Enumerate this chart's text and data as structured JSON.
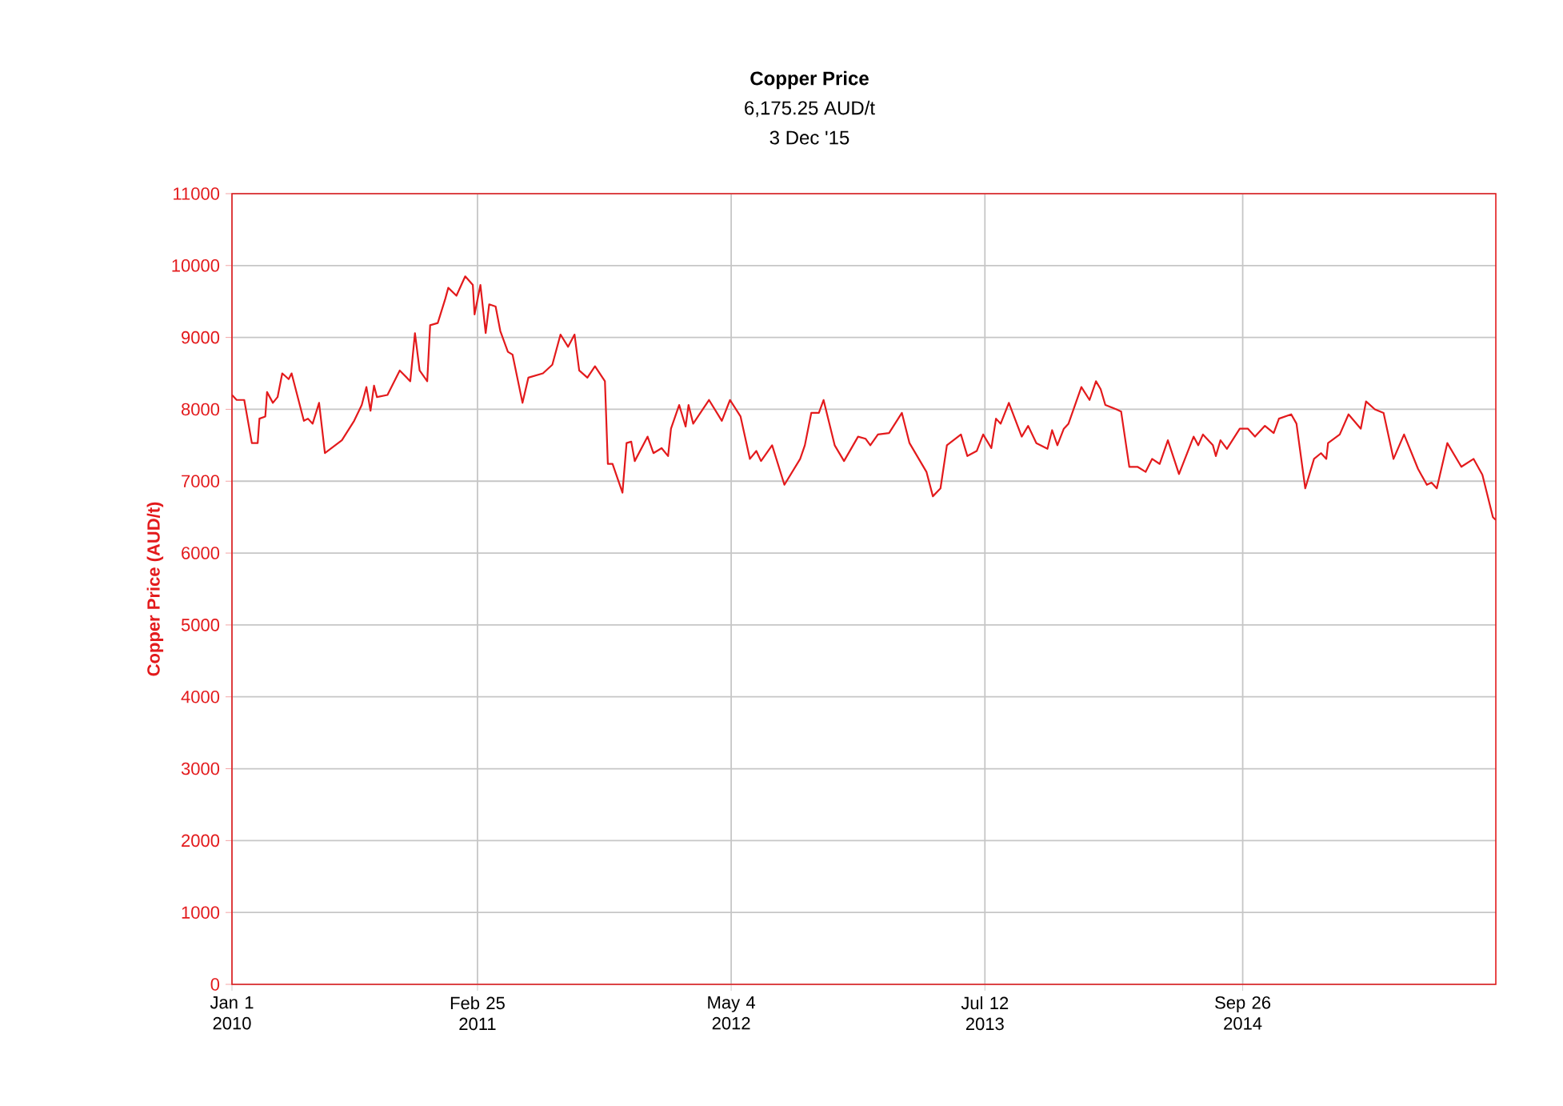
{
  "chart_data": {
    "type": "line",
    "title": "Copper Price",
    "subtitle": "6,175.25 AUD/t",
    "annotations": [
      "3 Dec '15"
    ],
    "ylabel": "Copper Price (AUD/t)",
    "xlim": [
      "2010-01-01",
      "2015-12-03"
    ],
    "xticks": [
      {
        "value": "2010-01-01",
        "label": "Jan 1 2010"
      },
      {
        "value": "2011-02-25",
        "label": "Feb 25 2011"
      },
      {
        "value": "2012-05-04",
        "label": "May 4 2012"
      },
      {
        "value": "2013-07-12",
        "label": "Jul 12 2013"
      },
      {
        "value": "2014-09-26",
        "label": "Sep 26 2014"
      }
    ],
    "ylim": [
      0,
      11000
    ],
    "yticks": [
      0,
      1000,
      2000,
      3000,
      4000,
      5000,
      6000,
      7000,
      8000,
      9000,
      10000,
      11000
    ],
    "grid": true,
    "series": [
      {
        "color": "#e31a1c",
        "x": [
          "2010-01-01",
          "2010-01-09",
          "2010-01-22",
          "2010-02-04",
          "2010-02-14",
          "2010-02-17",
          "2010-02-27",
          "2010-03-02",
          "2010-03-12",
          "2010-03-20",
          "2010-03-28",
          "2010-04-08",
          "2010-04-13",
          "2010-05-04",
          "2010-05-11",
          "2010-05-19",
          "2010-05-30",
          "2010-06-09",
          "2010-07-08",
          "2010-07-29",
          "2010-08-11",
          "2010-08-19",
          "2010-08-26",
          "2010-09-01",
          "2010-09-06",
          "2010-09-24",
          "2010-10-15",
          "2010-11-02",
          "2010-11-10",
          "2010-11-18",
          "2010-12-01",
          "2010-12-06",
          "2010-12-19",
          "2011-01-01",
          "2011-01-06",
          "2011-01-20",
          "2011-02-04",
          "2011-02-17",
          "2011-02-20",
          "2011-03-02",
          "2011-03-11",
          "2011-03-17",
          "2011-03-28",
          "2011-04-05",
          "2011-04-18",
          "2011-04-26",
          "2011-05-13",
          "2011-05-23",
          "2011-06-17",
          "2011-07-03",
          "2011-07-17",
          "2011-07-30",
          "2011-08-10",
          "2011-08-18",
          "2011-09-01",
          "2011-09-14",
          "2011-10-01",
          "2011-10-06",
          "2011-10-14",
          "2011-10-31",
          "2011-11-07",
          "2011-11-15",
          "2011-11-21",
          "2011-12-13",
          "2011-12-23",
          "2012-01-06",
          "2012-01-17",
          "2012-01-22",
          "2012-02-05",
          "2012-02-16",
          "2012-02-21",
          "2012-02-29",
          "2012-03-27",
          "2012-04-18",
          "2012-05-02",
          "2012-05-20",
          "2012-06-05",
          "2012-06-16",
          "2012-06-24",
          "2012-07-13",
          "2012-08-03",
          "2012-08-30",
          "2012-09-07",
          "2012-09-18",
          "2012-10-01",
          "2012-10-09",
          "2012-10-28",
          "2012-11-13",
          "2012-12-07",
          "2012-12-20",
          "2012-12-28",
          "2013-01-10",
          "2013-01-29",
          "2013-02-20",
          "2013-03-05",
          "2013-04-03",
          "2013-04-14",
          "2013-04-27",
          "2013-05-08",
          "2013-06-01",
          "2013-06-12",
          "2013-06-28",
          "2013-07-09",
          "2013-07-23",
          "2013-07-31",
          "2013-08-08",
          "2013-08-22",
          "2013-09-13",
          "2013-09-24",
          "2013-10-08",
          "2013-10-27",
          "2013-11-04",
          "2013-11-13",
          "2013-11-24",
          "2013-12-02",
          "2013-12-24",
          "2014-01-07",
          "2014-01-18",
          "2014-01-26",
          "2014-02-03",
          "2014-02-22",
          "2014-03-02",
          "2014-03-16",
          "2014-03-30",
          "2014-04-13",
          "2014-04-24",
          "2014-05-07",
          "2014-05-21",
          "2014-06-09",
          "2014-07-04",
          "2014-07-12",
          "2014-07-20",
          "2014-08-06",
          "2014-08-11",
          "2014-08-19",
          "2014-08-30",
          "2014-09-21",
          "2014-10-05",
          "2014-10-17",
          "2014-11-03",
          "2014-11-18",
          "2014-11-27",
          "2014-12-18",
          "2014-12-27",
          "2015-01-11",
          "2015-01-26",
          "2015-02-07",
          "2015-02-16",
          "2015-02-19",
          "2015-03-11",
          "2015-03-26",
          "2015-04-16",
          "2015-04-25",
          "2015-05-10",
          "2015-05-25",
          "2015-06-11",
          "2015-06-29",
          "2015-07-23",
          "2015-08-07",
          "2015-08-15",
          "2015-08-24",
          "2015-09-11",
          "2015-10-05",
          "2015-10-26",
          "2015-11-10",
          "2015-11-28",
          "2015-12-03"
        ],
        "values": [
          8200,
          8130,
          8130,
          7530,
          7530,
          7870,
          7900,
          8240,
          8090,
          8170,
          8500,
          8420,
          8500,
          7840,
          7870,
          7800,
          8090,
          7390,
          7570,
          7840,
          8060,
          8310,
          7980,
          8330,
          8170,
          8200,
          8540,
          8390,
          9060,
          8540,
          8390,
          9170,
          9200,
          9540,
          9690,
          9580,
          9850,
          9730,
          9320,
          9730,
          9060,
          9460,
          9430,
          9090,
          8800,
          8760,
          8090,
          8440,
          8500,
          8620,
          9040,
          8870,
          9040,
          8540,
          8440,
          8600,
          8390,
          7240,
          7240,
          6840,
          7530,
          7550,
          7280,
          7620,
          7390,
          7460,
          7350,
          7730,
          8060,
          7760,
          8060,
          7800,
          8130,
          7840,
          8130,
          7900,
          7310,
          7420,
          7280,
          7500,
          6950,
          7310,
          7500,
          7950,
          7950,
          8130,
          7500,
          7280,
          7620,
          7590,
          7500,
          7650,
          7670,
          7950,
          7530,
          7130,
          6790,
          6900,
          7500,
          7650,
          7350,
          7420,
          7650,
          7460,
          7870,
          7800,
          8090,
          7620,
          7770,
          7530,
          7450,
          7710,
          7500,
          7730,
          7800,
          8310,
          8130,
          8390,
          8280,
          8060,
          8000,
          7970,
          7200,
          7200,
          7130,
          7310,
          7240,
          7570,
          7100,
          7620,
          7500,
          7650,
          7500,
          7350,
          7570,
          7450,
          7730,
          7730,
          7620,
          7770,
          7670,
          7870,
          7930,
          7800,
          6900,
          7310,
          7390,
          7310,
          7530,
          7650,
          7930,
          7730,
          8110,
          8000,
          7950,
          7310,
          7650,
          7170,
          6950,
          6980,
          6900,
          7530,
          7200,
          7310,
          7090,
          6500,
          6460
        ]
      }
    ]
  }
}
